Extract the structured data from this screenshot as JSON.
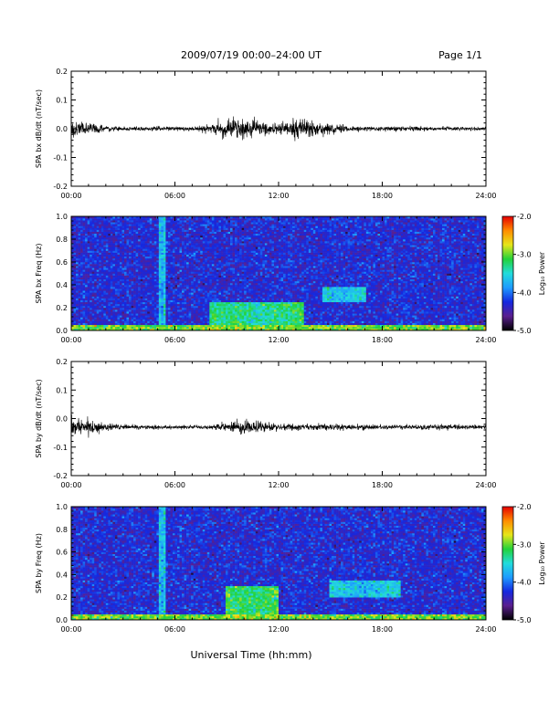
{
  "header": {
    "title": "2009/07/19  00:00–24:00 UT",
    "page_label": "Page 1/1"
  },
  "x_axis_title": "Universal Time (hh:mm)",
  "colorbar": {
    "label": "Log₁₀ Power",
    "ticks": [
      "-2.0",
      "-3.0",
      "-4.0",
      "-5.0"
    ],
    "range": [
      -5.0,
      -2.0
    ],
    "colormap": [
      "#000000",
      "#5a1f8f",
      "#1528e0",
      "#1e9bff",
      "#22dcdc",
      "#22d23a",
      "#e6e61a",
      "#ff8c00",
      "#e60000"
    ]
  },
  "chart_data": [
    {
      "type": "line",
      "ylabel": "SPA bx dB/dt (nT/sec)",
      "xlim": [
        0,
        24
      ],
      "ylim": [
        -0.2,
        0.2
      ],
      "xticks": [
        "00:00",
        "06:00",
        "12:00",
        "18:00",
        "24:00"
      ],
      "yticks": [
        "0.2",
        "0.1",
        "0.0",
        "-0.1",
        "-0.2"
      ],
      "baseline": 0.0,
      "envelope_hours": [
        0,
        1,
        2,
        3,
        4,
        5,
        6,
        7,
        8,
        9,
        10,
        11,
        12,
        13,
        14,
        15,
        16,
        17,
        18,
        19,
        20,
        21,
        22,
        23,
        24
      ],
      "envelope_amplitude": [
        0.045,
        0.03,
        0.015,
        0.01,
        0.01,
        0.012,
        0.01,
        0.012,
        0.025,
        0.045,
        0.06,
        0.035,
        0.03,
        0.045,
        0.05,
        0.03,
        0.015,
        0.012,
        0.012,
        0.012,
        0.012,
        0.01,
        0.01,
        0.01,
        0.01
      ]
    },
    {
      "type": "heatmap",
      "ylabel": "SPA bx Freq (Hz)",
      "xlim": [
        0,
        24
      ],
      "ylim": [
        0.0,
        1.0
      ],
      "xticks": [
        "00:00",
        "06:00",
        "12:00",
        "18:00",
        "24:00"
      ],
      "yticks": [
        "1.0",
        "0.8",
        "0.6",
        "0.4",
        "0.2",
        "0.0"
      ],
      "value_range": [
        -5.0,
        -2.0
      ],
      "background_level": -4.3,
      "low_freq_band": {
        "freq_max": 0.05,
        "level": -3.0
      },
      "features": [
        {
          "t_start": 8.0,
          "t_end": 13.5,
          "freq_max": 0.25,
          "level": -3.4
        },
        {
          "t_start": 14.5,
          "t_end": 17.0,
          "freq_min": 0.25,
          "freq_max": 0.38,
          "level": -3.7
        },
        {
          "t_start": 5.1,
          "t_end": 5.4,
          "freq_max": 1.0,
          "level": -3.8
        }
      ]
    },
    {
      "type": "line",
      "ylabel": "SPA by dB/dt (nT/sec)",
      "xlim": [
        0,
        24
      ],
      "ylim": [
        -0.2,
        0.2
      ],
      "xticks": [
        "00:00",
        "06:00",
        "12:00",
        "18:00",
        "24:00"
      ],
      "yticks": [
        "0.2",
        "0.1",
        "0.0",
        "-0.1",
        "-0.2"
      ],
      "baseline": -0.03,
      "envelope_hours": [
        0,
        1,
        2,
        3,
        4,
        5,
        6,
        7,
        8,
        9,
        10,
        11,
        12,
        13,
        14,
        15,
        16,
        17,
        18,
        19,
        20,
        21,
        22,
        23,
        24
      ],
      "envelope_amplitude": [
        0.05,
        0.04,
        0.02,
        0.012,
        0.01,
        0.012,
        0.01,
        0.01,
        0.012,
        0.02,
        0.04,
        0.03,
        0.018,
        0.015,
        0.015,
        0.015,
        0.015,
        0.015,
        0.012,
        0.012,
        0.012,
        0.015,
        0.015,
        0.012,
        0.015
      ]
    },
    {
      "type": "heatmap",
      "ylabel": "SPA by Freq (Hz)",
      "xlim": [
        0,
        24
      ],
      "ylim": [
        0.0,
        1.0
      ],
      "xticks": [
        "00:00",
        "06:00",
        "12:00",
        "18:00",
        "24:00"
      ],
      "yticks": [
        "1.0",
        "0.8",
        "0.6",
        "0.4",
        "0.2",
        "0.0"
      ],
      "value_range": [
        -5.0,
        -2.0
      ],
      "background_level": -4.3,
      "low_freq_band": {
        "freq_max": 0.05,
        "level": -3.0
      },
      "features": [
        {
          "t_start": 9.0,
          "t_end": 12.0,
          "freq_max": 0.3,
          "level": -3.3
        },
        {
          "t_start": 15.0,
          "t_end": 19.0,
          "freq_min": 0.2,
          "freq_max": 0.35,
          "level": -3.7
        },
        {
          "t_start": 5.1,
          "t_end": 5.4,
          "freq_max": 1.0,
          "level": -3.8
        }
      ]
    }
  ]
}
